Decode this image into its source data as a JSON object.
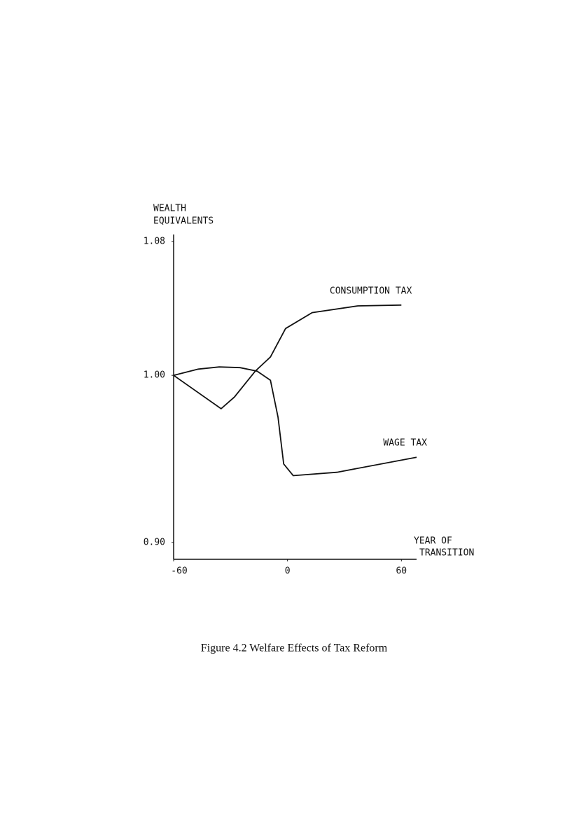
{
  "chart_data": {
    "type": "line",
    "title": "Figure 4.2    Welfare Effects of Tax Reform",
    "y_label": [
      "WEALTH",
      "EQUIVALENTS"
    ],
    "x_label": [
      "YEAR  OF",
      "TRANSITION"
    ],
    "xlim": [
      -60,
      68
    ],
    "xticks": [
      -60,
      0,
      60
    ],
    "ylim": [
      0.89,
      1.08
    ],
    "yticks": [
      {
        "value": 0.9,
        "label": "0.90"
      },
      {
        "value": 1,
        "label": "1.00"
      },
      1.08
    ],
    "series": [
      {
        "name": "CONSUMPTION  TAX",
        "color": "#111111",
        "x": [
          -60,
          -35,
          -28,
          -17,
          -9,
          -1,
          13,
          37,
          60
        ],
        "values": [
          1.0,
          0.98,
          0.987,
          1.0025,
          1.011,
          1.028,
          1.0375,
          1.0415,
          1.042
        ]
      },
      {
        "name": "WAGE  TAX",
        "color": "#111111",
        "x": [
          -60,
          -47,
          -36,
          -25,
          -16,
          -9,
          -5,
          -2,
          3,
          26,
          68
        ],
        "values": [
          1.0,
          1.0037,
          1.005,
          1.0046,
          1.0025,
          0.997,
          0.975,
          0.947,
          0.94,
          0.942,
          0.951
        ]
      }
    ]
  }
}
